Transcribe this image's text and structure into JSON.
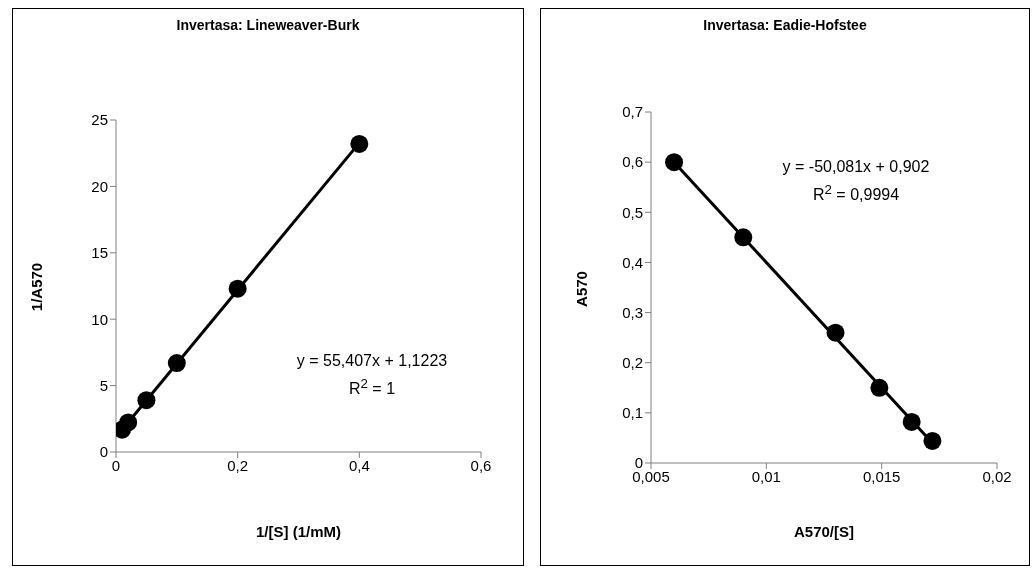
{
  "chart_data": [
    {
      "type": "scatter",
      "title": "Invertasa: Lineweaver-Burk",
      "xlabel": "1/[S] (1/mM)",
      "ylabel": "1/A570",
      "xlim": [
        0,
        0.6
      ],
      "xticks": [
        0,
        {
          "value": 0.2,
          "label": "0,2"
        },
        {
          "value": 0.4,
          "label": "0,4"
        },
        {
          "value": 0.6,
          "label": "0,6"
        }
      ],
      "ylim": [
        0,
        25
      ],
      "yticks": [
        0,
        5,
        10,
        15,
        20,
        25
      ],
      "series": [
        {
          "marker": "circle",
          "color": "#000000",
          "x": [
            0.01,
            0.02,
            0.05,
            0.1,
            0.2,
            0.4
          ],
          "values": [
            1.68,
            2.23,
            3.9,
            6.7,
            12.3,
            23.2
          ]
        },
        {
          "type": "line",
          "color": "#000000",
          "x": [
            0.01,
            0.4
          ],
          "values": [
            1.68,
            23.28
          ]
        }
      ],
      "annotations": [
        "y = 55,407x + 1,1223",
        "R$^{2}$ = 1"
      ]
    },
    {
      "type": "scatter",
      "title": "Invertasa: Eadie-Hofstee",
      "xlabel": "A570/[S]",
      "ylabel": "A570",
      "xlim": [
        0.005,
        0.02
      ],
      "xticks": [
        {
          "value": 0.005,
          "label": "0,005"
        },
        {
          "value": 0.01,
          "label": "0,01"
        },
        {
          "value": 0.015,
          "label": "0,015"
        },
        {
          "value": 0.02,
          "label": "0,02"
        }
      ],
      "ylim": [
        0,
        0.7
      ],
      "yticks": [
        0,
        {
          "value": 0.1,
          "label": "0,1"
        },
        {
          "value": 0.2,
          "label": "0,2"
        },
        {
          "value": 0.3,
          "label": "0,3"
        },
        {
          "value": 0.4,
          "label": "0,4"
        },
        {
          "value": 0.5,
          "label": "0,5"
        },
        {
          "value": 0.6,
          "label": "0,6"
        },
        {
          "value": 0.7,
          "label": "0,7"
        }
      ],
      "series": [
        {
          "marker": "circle",
          "color": "#000000",
          "x": [
            0.006,
            0.009,
            0.013,
            0.0149,
            0.0163,
            0.0172
          ],
          "values": [
            0.6,
            0.45,
            0.26,
            0.15,
            0.082,
            0.044
          ]
        },
        {
          "type": "line",
          "color": "#000000",
          "x": [
            0.006,
            0.0172
          ],
          "values": [
            0.6,
            0.04
          ]
        }
      ],
      "annotations": [
        "y = -50,081x + 0,902",
        "R$^{2}$ = 0,9994"
      ]
    }
  ]
}
